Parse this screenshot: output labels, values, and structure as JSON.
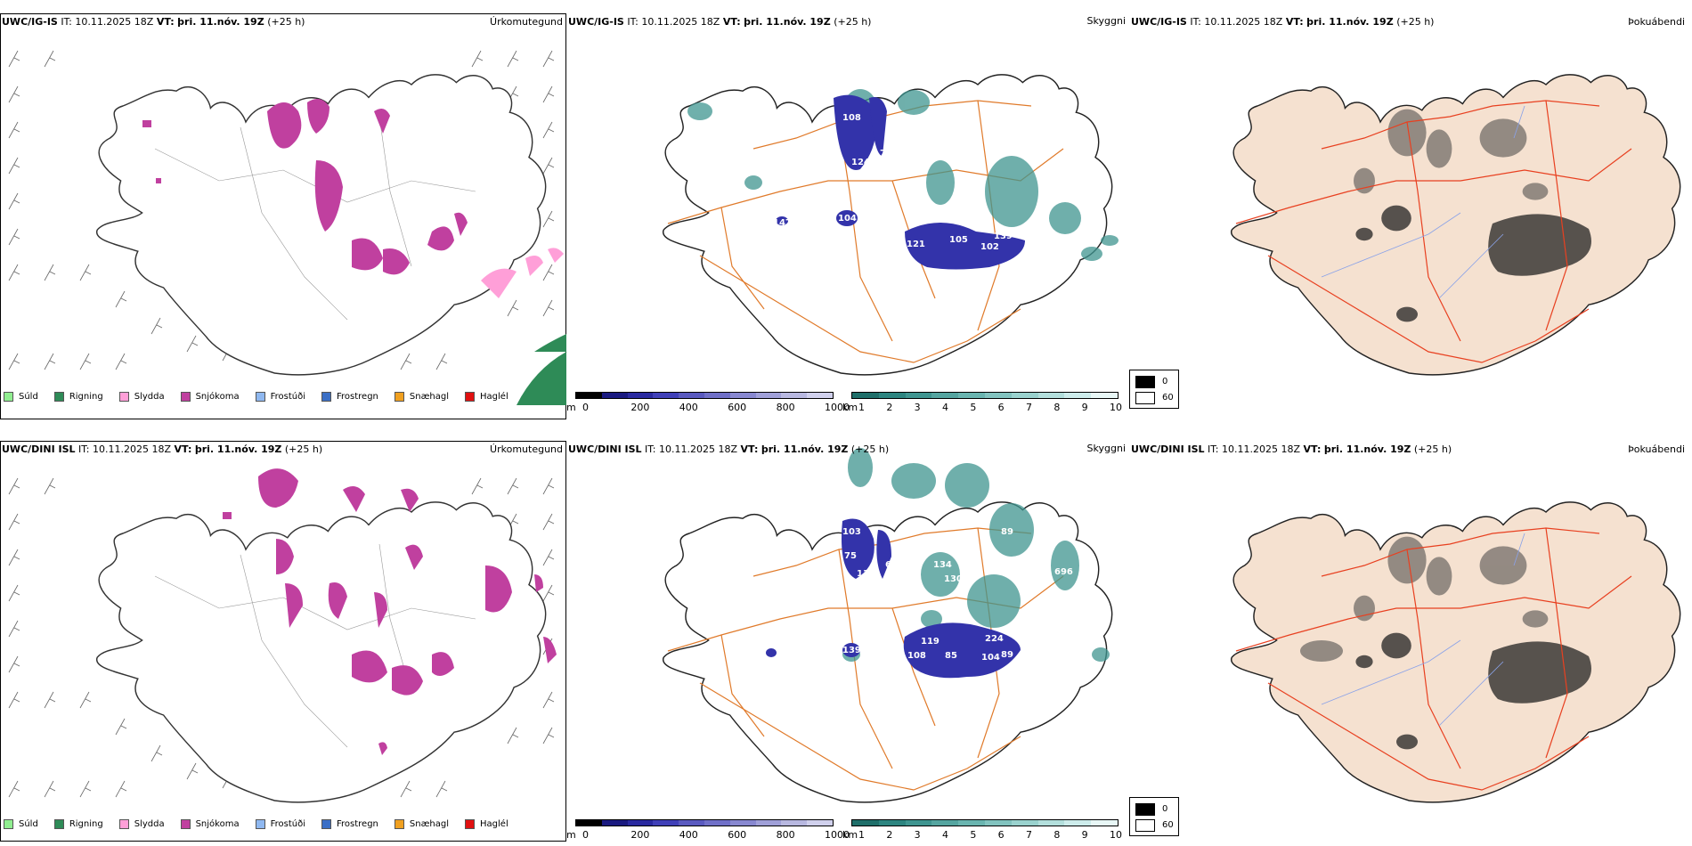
{
  "rows": [
    {
      "model": "UWC/IG-IS",
      "it_label": "IT:",
      "it_value": "10.11.2025 18Z",
      "vt_label": "VT:",
      "vt_value": "þri. 11.nóv. 19Z",
      "lead": "(+25 h)",
      "wind_labels": [
        {
          "text": "108"
        },
        {
          "text": "124"
        },
        {
          "text": "93"
        },
        {
          "text": "77"
        },
        {
          "text": "104"
        },
        {
          "text": "121"
        },
        {
          "text": "105"
        },
        {
          "text": "102"
        },
        {
          "text": "139"
        },
        {
          "text": "147"
        }
      ]
    },
    {
      "model": "UWC/DINI ISL",
      "it_label": "IT:",
      "it_value": "10.11.2025 18Z",
      "vt_label": "VT:",
      "vt_value": "þri. 11.nóv. 19Z",
      "lead": "(+25 h)",
      "wind_labels": [
        {
          "text": "103"
        },
        {
          "text": "75"
        },
        {
          "text": "136"
        },
        {
          "text": "64"
        },
        {
          "text": "62"
        },
        {
          "text": "134"
        },
        {
          "text": "130"
        },
        {
          "text": "89"
        },
        {
          "text": "696"
        },
        {
          "text": "139"
        },
        {
          "text": "119"
        },
        {
          "text": "108"
        },
        {
          "text": "85"
        },
        {
          "text": "104"
        },
        {
          "text": "89"
        },
        {
          "text": "224"
        }
      ]
    }
  ],
  "panel_titles": {
    "precip": "Úrkomutegund",
    "visibility": "Skyggni",
    "fog": "Þokuábendi"
  },
  "precip_legend": [
    {
      "label": "Súld",
      "color": "#90ee90"
    },
    {
      "label": "Rigning",
      "color": "#2e8b57"
    },
    {
      "label": "Slydda",
      "color": "#ff9fd8"
    },
    {
      "label": "Snjókoma",
      "color": "#c0409f"
    },
    {
      "label": "Frostúði",
      "color": "#8fb8f0"
    },
    {
      "label": "Frostregn",
      "color": "#3b6fc6"
    },
    {
      "label": "Snæhagl",
      "color": "#f0a020"
    },
    {
      "label": "Haglél",
      "color": "#e01010"
    }
  ],
  "visibility_m": {
    "unit": "m",
    "ticks": [
      "0",
      "200",
      "400",
      "600",
      "800",
      "1000"
    ],
    "colors": [
      "#000000",
      "#1a1a80",
      "#2a2aa0",
      "#4040b8",
      "#5a5ac0",
      "#7070c8",
      "#8888d0",
      "#a0a0d8",
      "#b8b8e0",
      "#d0d0ec"
    ]
  },
  "visibility_km": {
    "unit": "km",
    "ticks": [
      "1",
      "2",
      "3",
      "4",
      "5",
      "6",
      "7",
      "8",
      "9",
      "10"
    ],
    "colors": [
      "#1f6f6a",
      "#2d8580",
      "#3f9590",
      "#55a5a0",
      "#6ab5b0",
      "#82c3bf",
      "#9ad2ce",
      "#b3dfdc",
      "#cdeceb",
      "#e8f7f6"
    ]
  },
  "fog_legend": {
    "max_label": "0",
    "min_label": "60",
    "max_color": "#000000",
    "min_color": "#ffffff"
  },
  "colors": {
    "snow": "#c0409f",
    "rain": "#2e8b57",
    "sleet": "#ff9fd8",
    "vis_blue": "#3333aa",
    "vis_teal": "#3f9590",
    "roads": "#e07a2a",
    "roads_red": "#e84020",
    "land_fog": "#f5e1d0",
    "rivers": "#8aa2e8"
  }
}
